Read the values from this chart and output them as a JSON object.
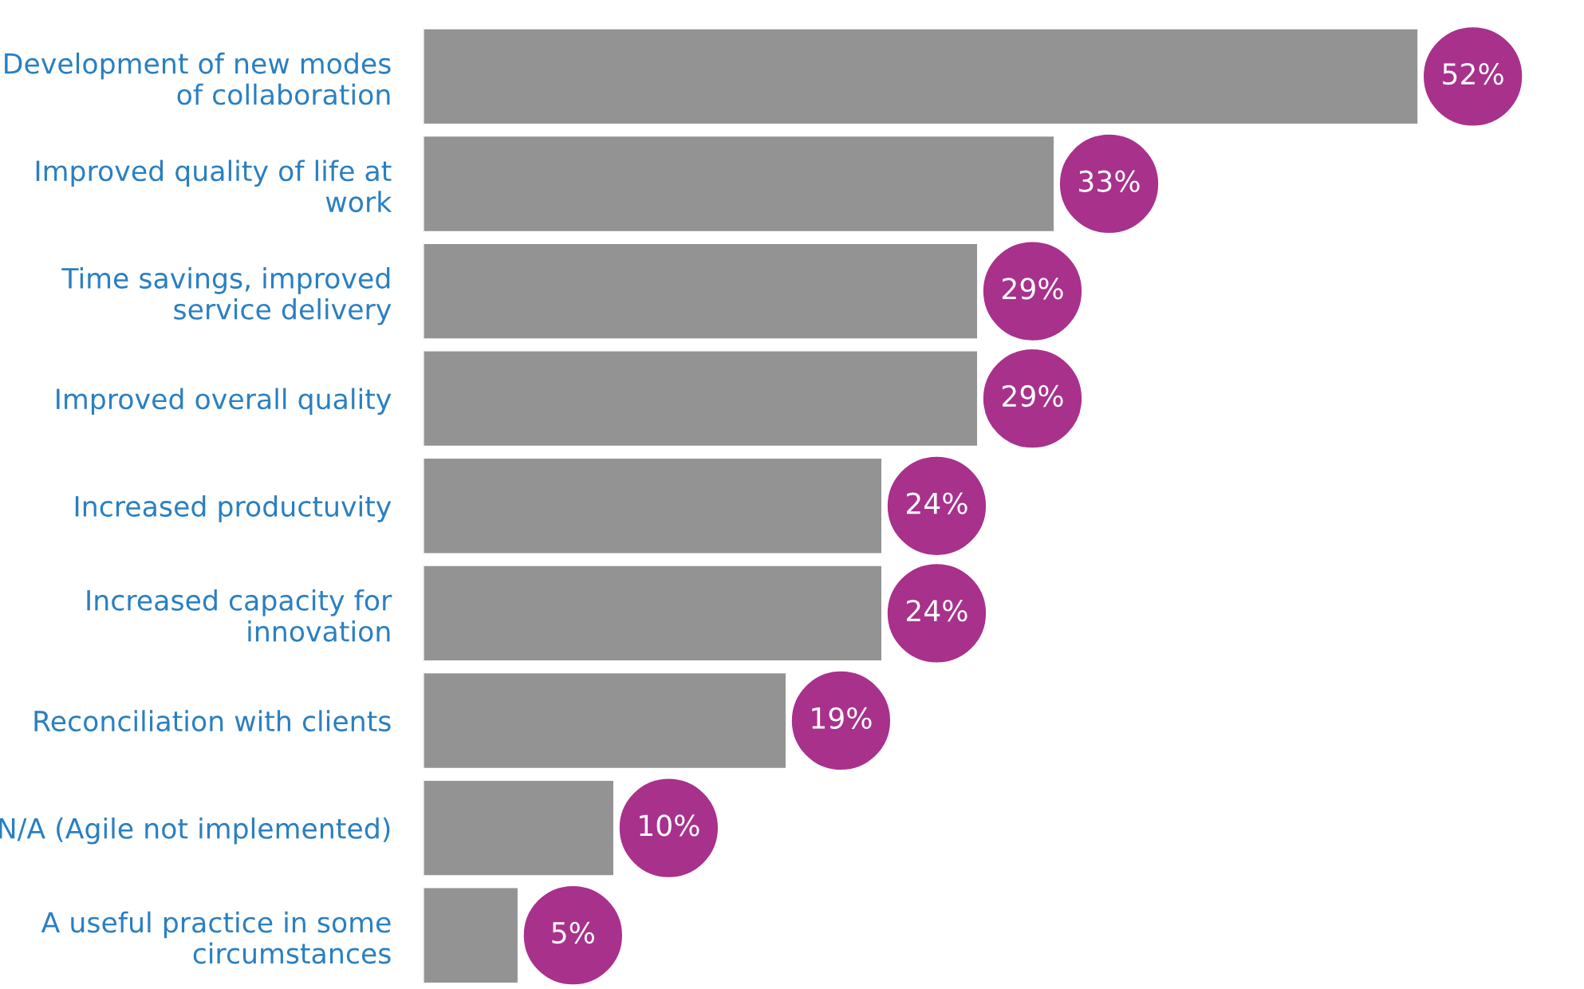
{
  "chart_data": {
    "type": "bar",
    "orientation": "horizontal",
    "categories": [
      "Development of new modes\nof collaboration",
      "Improved quality of life at\nwork",
      "Time savings, improved\nservice delivery",
      "Improved overall quality",
      "Increased productuvity",
      "Increased capacity for\ninnovation",
      "Reconciliation with clients",
      "N/A (Agile not implemented)",
      "A useful practice in some\ncircumstances"
    ],
    "values": [
      52,
      33,
      29,
      29,
      24,
      24,
      19,
      10,
      5
    ],
    "value_labels": [
      "52%",
      "33%",
      "29%",
      "29%",
      "24%",
      "24%",
      "19%",
      "10%",
      "5%"
    ],
    "color": "#939393",
    "grid": false,
    "legend": false
  }
}
